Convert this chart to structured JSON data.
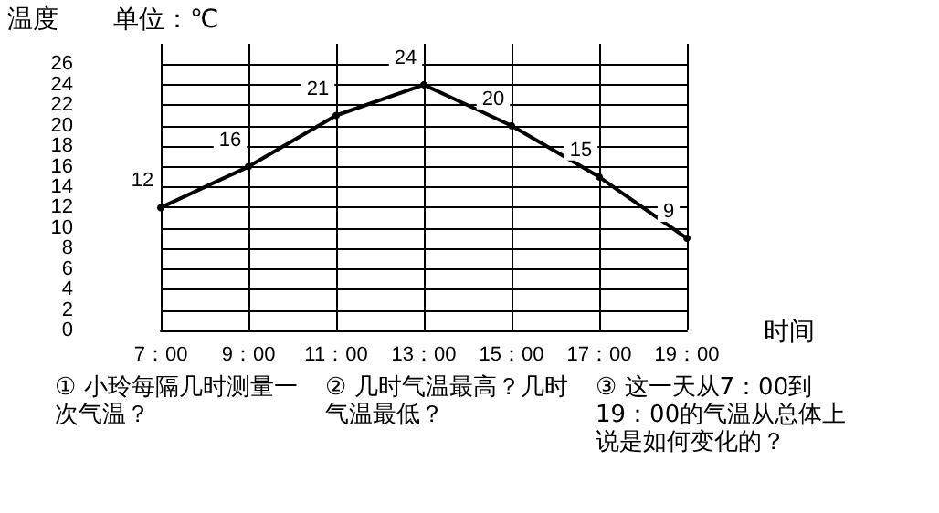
{
  "chart_data": {
    "type": "line",
    "ylabel": "温度",
    "subtitle": "单位：℃",
    "xlabel": "时间",
    "categories": [
      "7：00",
      "9：00",
      "11：00",
      "13：00",
      "15：00",
      "17：00",
      "19：00"
    ],
    "values": [
      12,
      16,
      21,
      24,
      20,
      15,
      9
    ],
    "color": "#000000",
    "ylim": [
      0,
      28
    ],
    "yticks": [
      0,
      2,
      4,
      6,
      8,
      10,
      12,
      14,
      16,
      18,
      20,
      22,
      24,
      26
    ],
    "grid": true,
    "marker": "circle",
    "line_style": "solid",
    "data_labels": true,
    "annotations": [
      "① 小玲每隔几时测量一次气温？",
      "② 几时气温最高？几时气温最低？",
      "③ 这一天从7：00到19：00的气温从总体上说是如何变化的？"
    ]
  }
}
